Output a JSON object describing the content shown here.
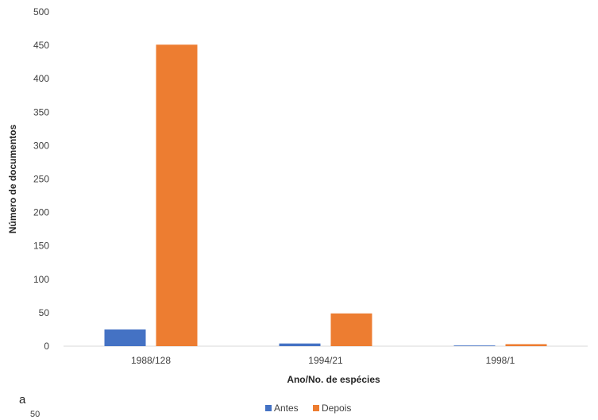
{
  "chart_data": {
    "type": "bar",
    "title": "",
    "xlabel": "Ano/No. de espécies",
    "ylabel": "Número de documentos",
    "categories": [
      "1988/128",
      "1994/21",
      "1998/1"
    ],
    "series": [
      {
        "name": "Antes",
        "color": "#4472C4",
        "values": [
          25,
          4,
          1
        ]
      },
      {
        "name": "Depois",
        "color": "#ED7D31",
        "values": [
          451,
          49,
          3
        ]
      }
    ],
    "ylim": [
      0,
      500
    ],
    "yticks": [
      0,
      50,
      100,
      150,
      200,
      250,
      300,
      350,
      400,
      450,
      500
    ],
    "grid": false,
    "legend_position": "bottom"
  },
  "panel_label": "a",
  "cut_off_label": "50"
}
